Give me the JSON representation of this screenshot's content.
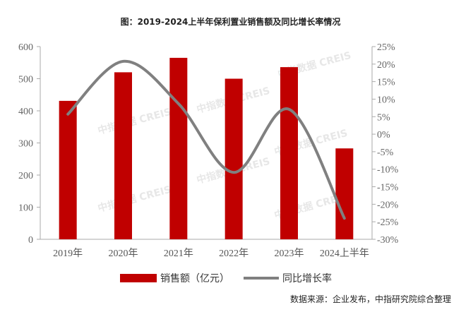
{
  "chart_data": {
    "type": "bar+line",
    "title": "图：2019-2024上半年保利置业销售额及同比增长率情况",
    "categories": [
      "2019年",
      "2020年",
      "2021年",
      "2022年",
      "2023年",
      "2024上半年"
    ],
    "series": [
      {
        "name": "销售额（亿元）",
        "type": "bar",
        "axis": "left",
        "color": "#C00000",
        "values": [
          431,
          520,
          565,
          500,
          536,
          283
        ]
      },
      {
        "name": "同比增长率",
        "type": "line",
        "axis": "right",
        "smooth": true,
        "color": "#808080",
        "values": [
          5.7,
          20.8,
          8.7,
          -10.9,
          7.1,
          -24.0
        ]
      }
    ],
    "left_axis": {
      "ylim": [
        0,
        600
      ],
      "ticks": [
        "0",
        "100",
        "200",
        "300",
        "400",
        "500",
        "600"
      ]
    },
    "right_axis": {
      "ylim": [
        -30,
        25
      ],
      "ticks": [
        "-30%",
        "-25%",
        "-20%",
        "-15%",
        "-10%",
        "-5%",
        "0%",
        "5%",
        "10%",
        "15%",
        "20%",
        "25%"
      ]
    },
    "grid": false,
    "legend": "bottom"
  },
  "watermark": "中指数据 CREIS",
  "source": "数据来源：企业发布，中指研究院综合整理"
}
